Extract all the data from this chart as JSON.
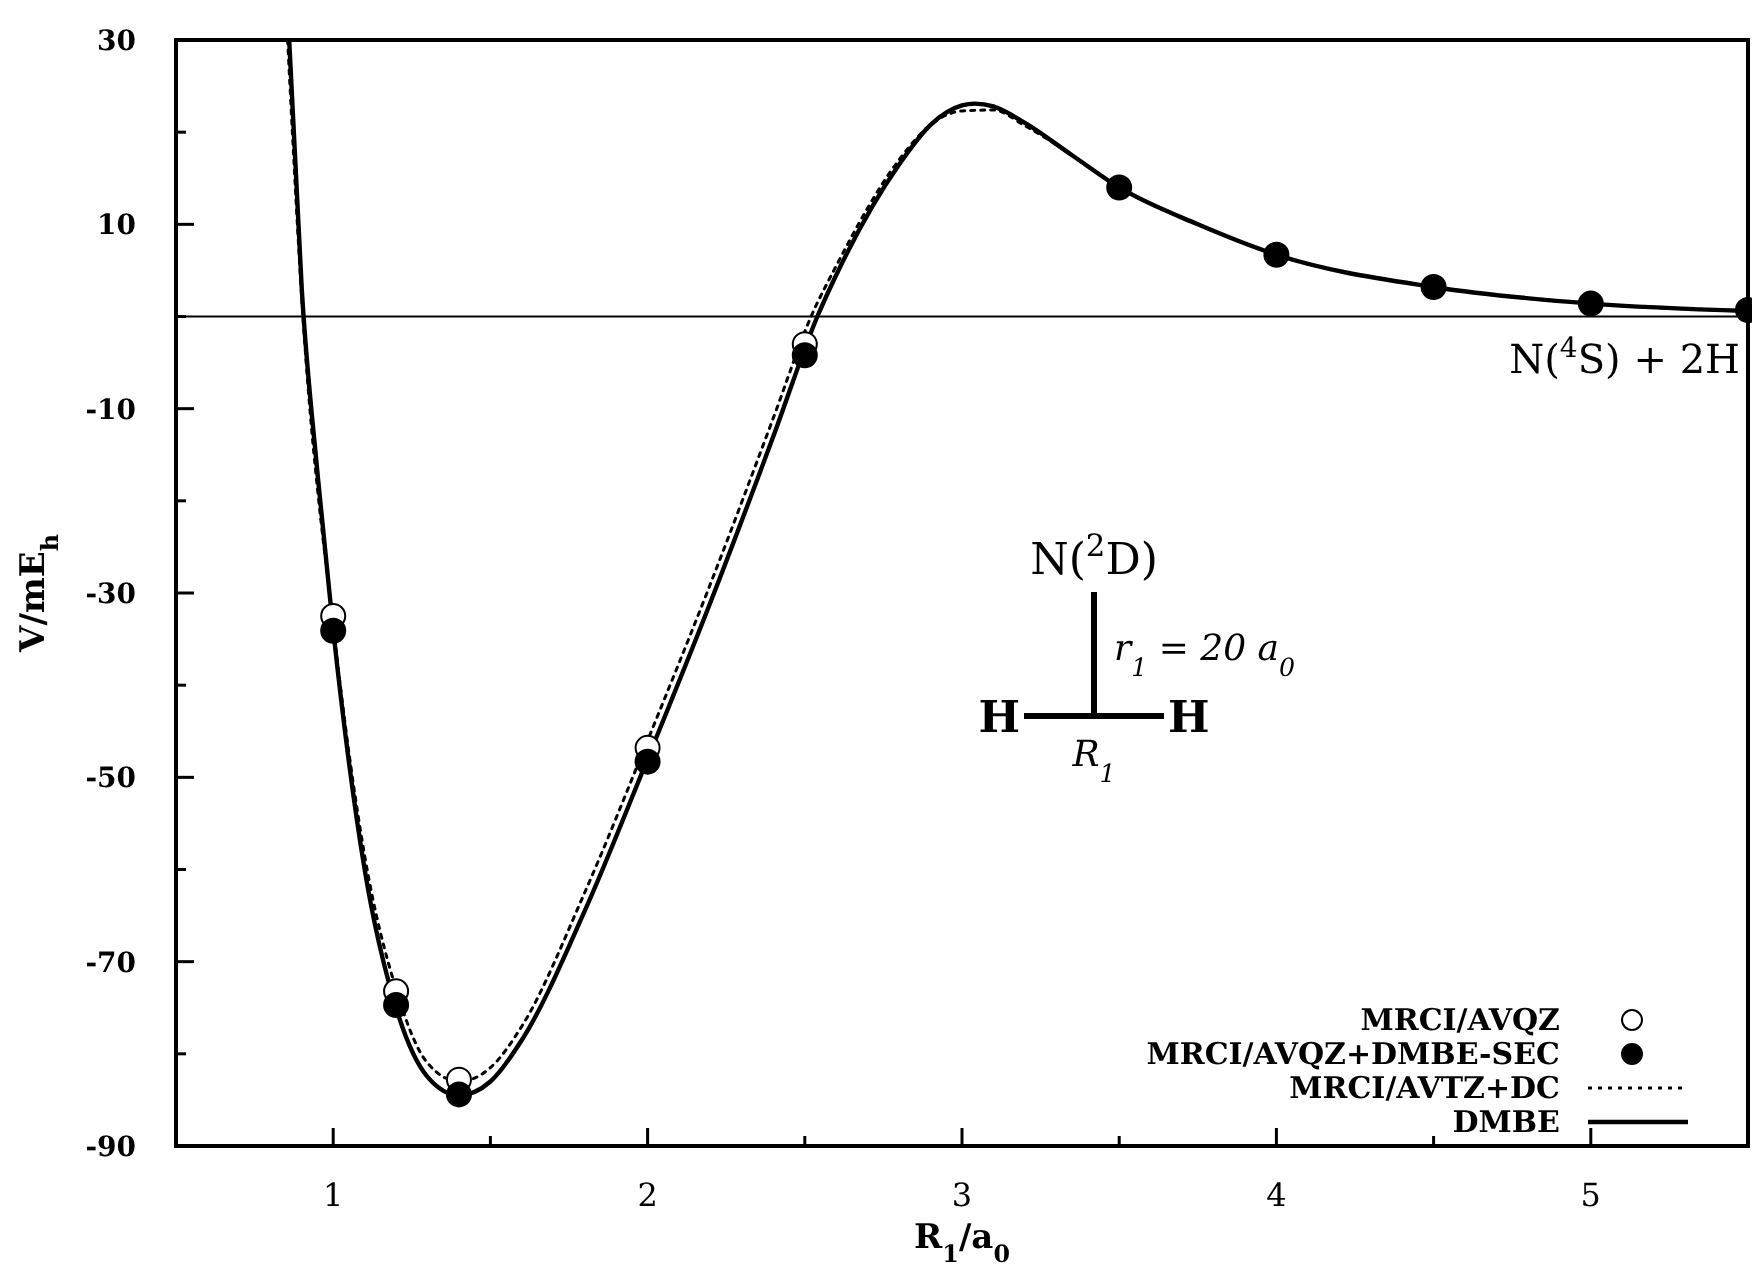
{
  "chart_data": {
    "type": "line",
    "xlabel": "R$_{1}$/a$_{0}$",
    "ylabel": "V/mE$_{h}$",
    "xlim": [
      0.5,
      5.5
    ],
    "ylim": [
      -90,
      30
    ],
    "xticks": [
      1,
      {
        "value": 1.5,
        "label": null
      },
      2,
      {
        "value": 2.5,
        "label": null
      },
      3,
      {
        "value": 3.5,
        "label": null
      },
      4,
      {
        "value": 4.5,
        "label": null
      },
      5
    ],
    "yticks": [
      30,
      {
        "value": 20,
        "label": null
      },
      10,
      {
        "value": 0,
        "label": null
      },
      -10,
      {
        "value": -20,
        "label": null
      },
      -30,
      {
        "value": -40,
        "label": null
      },
      -50,
      {
        "value": -60,
        "label": null
      },
      -70,
      {
        "value": -80,
        "label": null
      },
      -90
    ],
    "grid": false,
    "legend": "bottom right",
    "series": [
      {
        "name": "MRCI/AVQZ",
        "type": "scatter",
        "marker": "circle",
        "color": "#ffffff",
        "x": [
          1.0,
          1.2,
          1.4,
          2.0,
          2.5
        ],
        "values": [
          -32.5,
          -73.2,
          -82.8,
          -46.8,
          -3.0
        ]
      },
      {
        "name": "MRCI/AVQZ+DMBE-SEC",
        "type": "scatter",
        "marker": "circle",
        "color": "#000000",
        "x": [
          1.0,
          1.2,
          1.4,
          2.0,
          2.5,
          3.5,
          4.0,
          4.5,
          5.0,
          5.5
        ],
        "values": [
          -34.1,
          -74.7,
          -84.4,
          -48.3,
          -4.2,
          14.0,
          6.7,
          3.2,
          1.4,
          0.7
        ]
      },
      {
        "name": "MRCI/AVTZ+DC",
        "type": "line",
        "line_style": "dotted",
        "color": "#000000",
        "x": [
          0.855,
          0.9,
          1.0,
          1.1,
          1.2,
          1.3,
          1.4,
          1.5,
          1.6,
          1.8,
          2.0,
          2.2,
          2.4,
          2.52,
          2.6,
          2.8,
          2.9,
          3.0,
          3.1,
          3.2,
          3.35,
          3.5,
          3.75,
          4.0,
          4.5,
          5.0,
          5.5
        ],
        "values": [
          30,
          2,
          -33.5,
          -58.5,
          -73,
          -81,
          -83,
          -81.5,
          -77,
          -62.5,
          -46,
          -29,
          -11,
          0,
          5.5,
          17,
          20.8,
          22.3,
          22.4,
          20.7,
          17.5,
          14,
          10,
          6.7,
          3.2,
          1.4,
          0.6
        ]
      },
      {
        "name": "DMBE",
        "type": "line",
        "line_style": "solid",
        "color": "#000000",
        "x": [
          0.86,
          0.9,
          0.95,
          1.0,
          1.1,
          1.2,
          1.3,
          1.4,
          1.5,
          1.6,
          1.8,
          2.0,
          2.2,
          2.4,
          2.54,
          2.6,
          2.8,
          2.9,
          3.0,
          3.04,
          3.1,
          3.2,
          3.35,
          3.5,
          3.75,
          4.0,
          4.5,
          5.0,
          5.5
        ],
        "values": [
          30,
          3,
          -17,
          -34,
          -60,
          -75,
          -82.5,
          -84.5,
          -83,
          -78.5,
          -64.5,
          -48,
          -31,
          -13,
          0,
          4.5,
          16.5,
          20.8,
          22.9,
          23.1,
          22.8,
          21,
          17.5,
          14,
          10,
          6.7,
          3.2,
          1.4,
          0.6
        ]
      }
    ],
    "ref_lines": [
      {
        "axis": "y",
        "value": 0,
        "label": "N($^{4}$S) + 2H",
        "color": "#000000"
      }
    ],
    "annotations": [
      "N($^{2}$D)",
      "r$_{1}$ = 20 a$_{0}$",
      "H",
      "H",
      "R$_{1}$"
    ]
  }
}
